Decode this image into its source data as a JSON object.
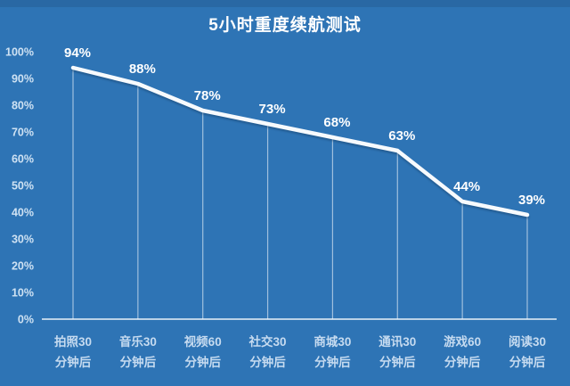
{
  "title": "5小时重度续航测试",
  "chart_data": {
    "type": "line",
    "title": "5小时重度续航测试",
    "categories": [
      "拍照30分钟后",
      "音乐30分钟后",
      "视频60分钟后",
      "社交30分钟后",
      "商城30分钟后",
      "通讯30分钟后",
      "游戏60分钟后",
      "阅读30分钟后"
    ],
    "values": [
      94,
      88,
      78,
      73,
      68,
      63,
      44,
      39
    ],
    "data_labels": [
      "94%",
      "88%",
      "78%",
      "73%",
      "68%",
      "63%",
      "44%",
      "39%"
    ],
    "y_ticks": [
      "100%",
      "90%",
      "80%",
      "70%",
      "60%",
      "50%",
      "40%",
      "30%",
      "20%",
      "10%",
      "0%"
    ],
    "ylim": [
      0,
      100
    ],
    "xlabel": "",
    "ylabel": "",
    "grid": "off",
    "legend": "none",
    "marker_drop_lines": true
  },
  "colors": {
    "background": "#2e74b5",
    "top_strip": "#265f95",
    "title_text": "#ffffff",
    "line": "#f7fafd",
    "data_label_text": "#ffffff",
    "y_tick_text": "#cfe2f3",
    "x_tick_text": "#c6dbf0",
    "axis_line": "rgba(255,255,255,0.9)",
    "drop_line": "rgba(255,255,255,0.55)"
  }
}
